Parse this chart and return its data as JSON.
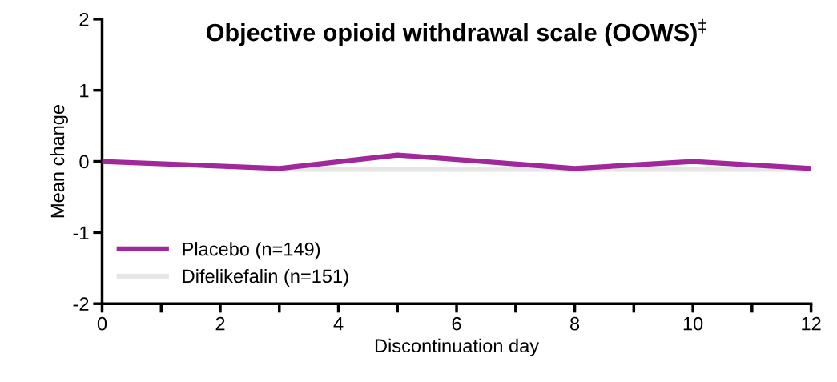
{
  "chart_data": {
    "type": "line",
    "title": "Objective opioid withdrawal scale (OOWS)$^{‡}$",
    "xlabel": "Discontinuation day",
    "ylabel": "Mean change",
    "x": [
      0,
      3,
      5,
      8,
      10,
      12
    ],
    "series": [
      {
        "name": "Placebo (n=149)",
        "color": "#a0289a",
        "values": [
          0.0,
          -0.1,
          0.09,
          -0.1,
          0.0,
          -0.1
        ]
      },
      {
        "name": "Difelikefalin (n=151)",
        "color": "#e6e6e6",
        "values": [
          null,
          -0.11,
          -0.11,
          -0.11,
          -0.11,
          -0.11
        ]
      }
    ],
    "xlim": [
      0,
      12
    ],
    "ylim": [
      -2,
      2
    ],
    "xticks": [
      0,
      {
        "value": 1,
        "label": null
      },
      2,
      {
        "value": 3,
        "label": null
      },
      4,
      {
        "value": 5,
        "label": null
      },
      6,
      {
        "value": 7,
        "label": null
      },
      8,
      {
        "value": 9,
        "label": null
      },
      10,
      {
        "value": 11,
        "label": null
      },
      12
    ],
    "yticks": [
      -2,
      -1,
      0,
      1,
      2
    ],
    "grid": false,
    "legend": "bottom left",
    "marker": "none",
    "line_style": "solid"
  }
}
